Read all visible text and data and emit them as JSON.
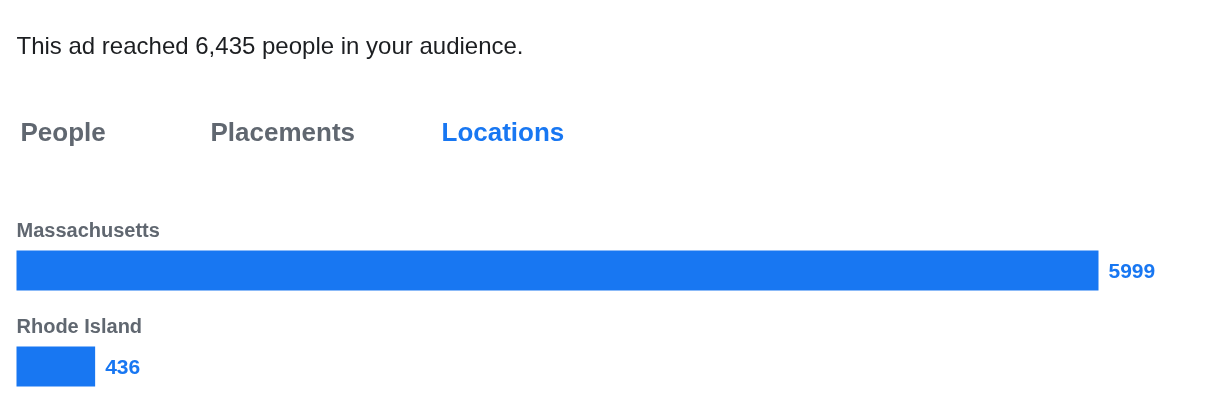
{
  "chart_data": {
    "type": "bar",
    "orientation": "horizontal",
    "title": "This ad reached 6,435 people in your audience.",
    "annotations": [
      "People",
      "Placements",
      "Locations"
    ],
    "categories": [
      "Massachusetts",
      "Rhode Island"
    ],
    "values": [
      5999,
      436
    ],
    "color": "#1877f2",
    "data_labels": true,
    "tick_labels": false,
    "grid": false
  }
}
